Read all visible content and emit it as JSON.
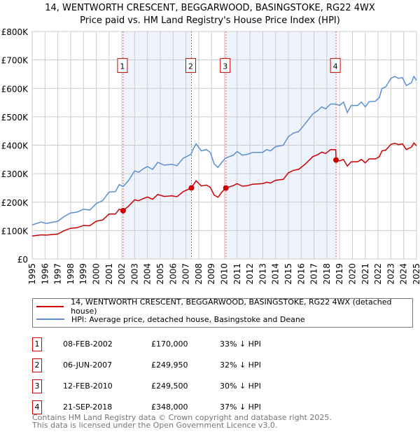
{
  "chart_data": {
    "type": "line",
    "title": "14, WENTWORTH CRESCENT, BEGGARWOOD, BASINGSTOKE, RG22 4WX",
    "subtitle": "Price paid vs. HM Land Registry's House Price Index (HPI)",
    "xlim": [
      1995,
      2025
    ],
    "ylim": [
      0,
      800000
    ],
    "y_ticks": [
      {
        "v": 0,
        "label": "£0"
      },
      {
        "v": 100000,
        "label": "£100K"
      },
      {
        "v": 200000,
        "label": "£200K"
      },
      {
        "v": 300000,
        "label": "£300K"
      },
      {
        "v": 400000,
        "label": "£400K"
      },
      {
        "v": 500000,
        "label": "£500K"
      },
      {
        "v": 600000,
        "label": "£600K"
      },
      {
        "v": 700000,
        "label": "£700K"
      },
      {
        "v": 800000,
        "label": "£800K"
      }
    ],
    "x_ticks": [
      "1995",
      "1996",
      "1997",
      "1998",
      "1999",
      "2000",
      "2001",
      "2002",
      "2003",
      "2004",
      "2005",
      "2006",
      "2007",
      "2008",
      "2009",
      "2010",
      "2011",
      "2012",
      "2013",
      "2014",
      "2015",
      "2016",
      "2017",
      "2018",
      "2019",
      "2020",
      "2021",
      "2022",
      "2023",
      "2024",
      "2025"
    ],
    "grid": true,
    "series": [
      {
        "name": "14, WENTWORTH CRESCENT, BEGGARWOOD, BASINGSTOKE, RG22 4WX (detached house)",
        "color": "#cc0000",
        "x": [
          1995,
          1995.7,
          1996.1,
          1997,
          1997.5,
          1998,
          1998.5,
          1999,
          1999.5,
          2000,
          2000.5,
          2001,
          2001.5,
          2001.8,
          2002.1,
          2002.5,
          2003,
          2003.3,
          2003.7,
          2004,
          2004.4,
          2004.8,
          2005.3,
          2005.9,
          2006.3,
          2006.8,
          2007.43,
          2007.6,
          2007.8,
          2008.2,
          2008.6,
          2008.9,
          2009.2,
          2009.5,
          2009.8,
          2010.12,
          2010.7,
          2011,
          2011.4,
          2011.8,
          2012.2,
          2013,
          2013.3,
          2013.6,
          2014,
          2014.6,
          2015,
          2015.4,
          2015.8,
          2016.3,
          2016.9,
          2017.3,
          2017.6,
          2017.9,
          2018.3,
          2018.7,
          2018.72,
          2019,
          2019.3,
          2019.6,
          2019.9,
          2020.4,
          2020.7,
          2021,
          2021.3,
          2021.8,
          2022.1,
          2022.3,
          2022.6,
          2023,
          2023.3,
          2023.6,
          2023.9,
          2024.2,
          2024.6,
          2024.8,
          2025
        ],
        "y": [
          81,
          85,
          84,
          88,
          100,
          108,
          110,
          118,
          117,
          133,
          137,
          158,
          158,
          175,
          170,
          185,
          208,
          205,
          213,
          218,
          210,
          227,
          220,
          222,
          219,
          237,
          250,
          262,
          275,
          257,
          260,
          252,
          225,
          217,
          235,
          250,
          258,
          265,
          256,
          258,
          263,
          265,
          270,
          267,
          277,
          280,
          303,
          312,
          315,
          333,
          360,
          367,
          376,
          371,
          385,
          384,
          348,
          345,
          350,
          327,
          342,
          342,
          350,
          338,
          352,
          352,
          360,
          380,
          383,
          403,
          407,
          402,
          405,
          385,
          393,
          408,
          398
        ]
      },
      {
        "name": "HPI: Average price, detached house, Basingstoke and Deane",
        "color": "#5b8fd4",
        "x": [
          1995,
          1995.7,
          1996.1,
          1997,
          1997.5,
          1998,
          1998.5,
          1999,
          1999.5,
          2000,
          2000.5,
          2001,
          2001.5,
          2001.8,
          2002.1,
          2002.5,
          2003,
          2003.3,
          2003.7,
          2004,
          2004.4,
          2004.8,
          2005.3,
          2005.9,
          2006.3,
          2006.8,
          2007.4,
          2007.6,
          2007.8,
          2008.2,
          2008.6,
          2008.9,
          2009.2,
          2009.5,
          2009.8,
          2010.1,
          2010.7,
          2011,
          2011.4,
          2011.8,
          2012.2,
          2013,
          2013.3,
          2013.6,
          2014,
          2014.6,
          2015,
          2015.4,
          2015.8,
          2016.3,
          2016.9,
          2017.3,
          2017.6,
          2017.9,
          2018.3,
          2018.7,
          2019,
          2019.3,
          2019.6,
          2019.9,
          2020.4,
          2020.7,
          2021,
          2021.3,
          2021.8,
          2022.1,
          2022.3,
          2022.6,
          2023,
          2023.3,
          2023.6,
          2023.9,
          2024.2,
          2024.6,
          2024.8,
          2025
        ],
        "y": [
          120,
          130,
          125,
          133,
          150,
          162,
          165,
          175,
          172,
          195,
          205,
          235,
          237,
          262,
          255,
          275,
          310,
          305,
          318,
          325,
          315,
          340,
          330,
          333,
          328,
          355,
          368,
          390,
          405,
          380,
          385,
          375,
          335,
          322,
          340,
          355,
          365,
          378,
          365,
          368,
          375,
          375,
          385,
          380,
          395,
          400,
          430,
          443,
          448,
          475,
          510,
          522,
          535,
          528,
          545,
          545,
          540,
          552,
          515,
          540,
          540,
          552,
          535,
          553,
          555,
          568,
          600,
          605,
          635,
          642,
          635,
          638,
          610,
          620,
          642,
          628
        ]
      }
    ],
    "y_unit": "thousands GBP",
    "sales": [
      {
        "n": "1",
        "x": 2002.1,
        "date": "08-FEB-2002",
        "price": "£170,000",
        "value": 170,
        "hpi": "33% ↓ HPI"
      },
      {
        "n": "2",
        "x": 2007.43,
        "date": "06-JUN-2007",
        "price": "£249,950",
        "value": 249.95,
        "hpi": "32% ↓ HPI"
      },
      {
        "n": "3",
        "x": 2010.12,
        "date": "12-FEB-2010",
        "price": "£249,500",
        "value": 249.5,
        "hpi": "30% ↓ HPI"
      },
      {
        "n": "4",
        "x": 2018.72,
        "date": "21-SEP-2018",
        "price": "£348,000",
        "value": 348,
        "hpi": "37% ↓ HPI"
      }
    ],
    "shaded_ranges": [
      [
        2002.1,
        2007.43
      ],
      [
        2010.12,
        2018.72
      ]
    ],
    "legend_placement": "below"
  },
  "footer": {
    "line1": "Contains HM Land Registry data © Crown copyright and database right 2025.",
    "line2": "This data is licensed under the Open Government Licence v3.0."
  }
}
